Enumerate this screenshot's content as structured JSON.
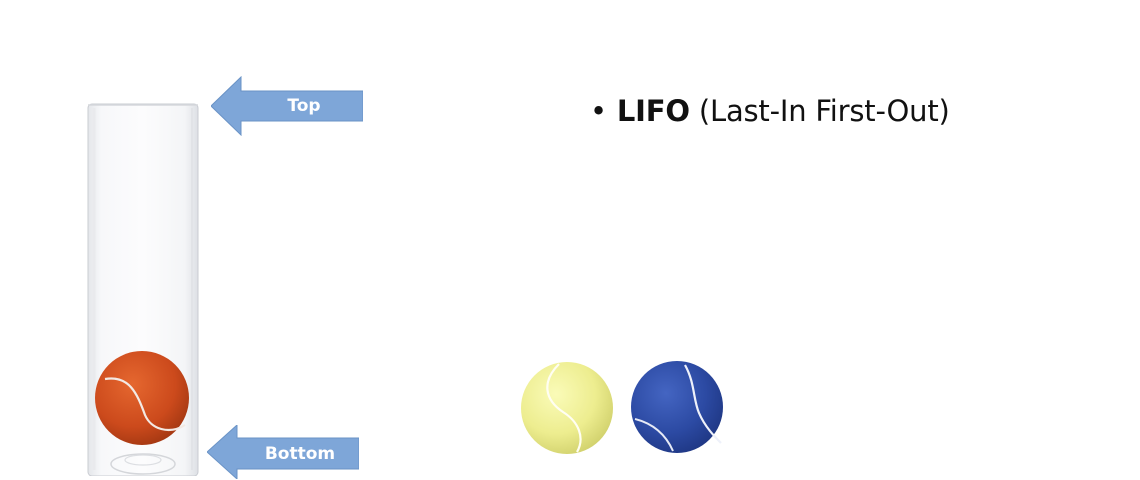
{
  "slide": {
    "bullet": {
      "marker": "•",
      "term": "LIFO",
      "description": "(Last-In First-Out)"
    },
    "arrows": {
      "top_label": "Top",
      "bottom_label": "Bottom",
      "color": "#7EA6D8"
    },
    "balls": {
      "in_tube": {
        "color": "#D4511F"
      },
      "outside": [
        {
          "color": "#EEEE8C"
        },
        {
          "color": "#2F4FA8"
        }
      ]
    }
  }
}
